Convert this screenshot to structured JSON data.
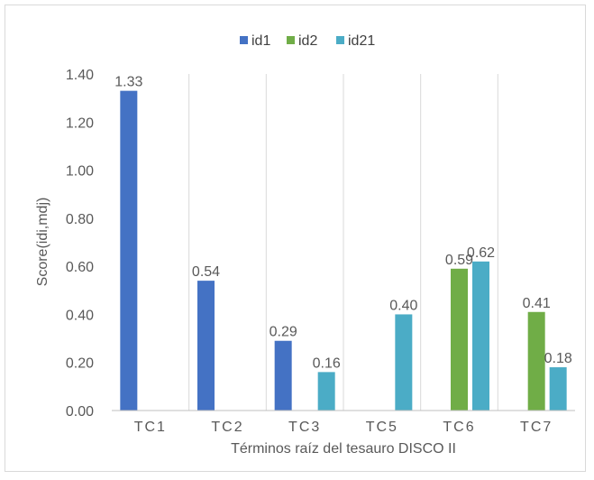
{
  "chart_data": {
    "type": "bar",
    "title": "",
    "xlabel": "Términos raíz del tesauro DISCO II",
    "ylabel": "Score(idi,mdj)",
    "ylim": [
      0,
      1.4
    ],
    "yticks": [
      "0.00",
      "0.20",
      "0.40",
      "0.60",
      "0.80",
      "1.00",
      "1.20",
      "1.40"
    ],
    "categories": [
      "TC1",
      "TC2",
      "TC3",
      "TC5",
      "TC6",
      "TC7"
    ],
    "series": [
      {
        "name": "id1",
        "color": "#4472c4",
        "values": [
          1.33,
          0.54,
          0.29,
          null,
          null,
          null
        ]
      },
      {
        "name": "id2",
        "color": "#70ad47",
        "values": [
          null,
          null,
          null,
          null,
          0.59,
          0.41
        ]
      },
      {
        "name": "id21",
        "color": "#4bacc6",
        "values": [
          null,
          null,
          0.16,
          0.4,
          0.62,
          0.18
        ]
      }
    ],
    "data_labels": [
      {
        "category": "TC1",
        "series": "id1",
        "text": "1.33"
      },
      {
        "category": "TC2",
        "series": "id1",
        "text": "0.54"
      },
      {
        "category": "TC3",
        "series": "id1",
        "text": "0.29"
      },
      {
        "category": "TC3",
        "series": "id21",
        "text": "0.16"
      },
      {
        "category": "TC5",
        "series": "id21",
        "text": "0.40"
      },
      {
        "category": "TC6",
        "series": "id2",
        "text": "0.59"
      },
      {
        "category": "TC6",
        "series": "id21",
        "text": "0.62"
      },
      {
        "category": "TC7",
        "series": "id2",
        "text": "0.41"
      },
      {
        "category": "TC7",
        "series": "id21",
        "text": "0.18"
      }
    ],
    "grid": "vertical-category-separators",
    "legend_position": "top"
  }
}
